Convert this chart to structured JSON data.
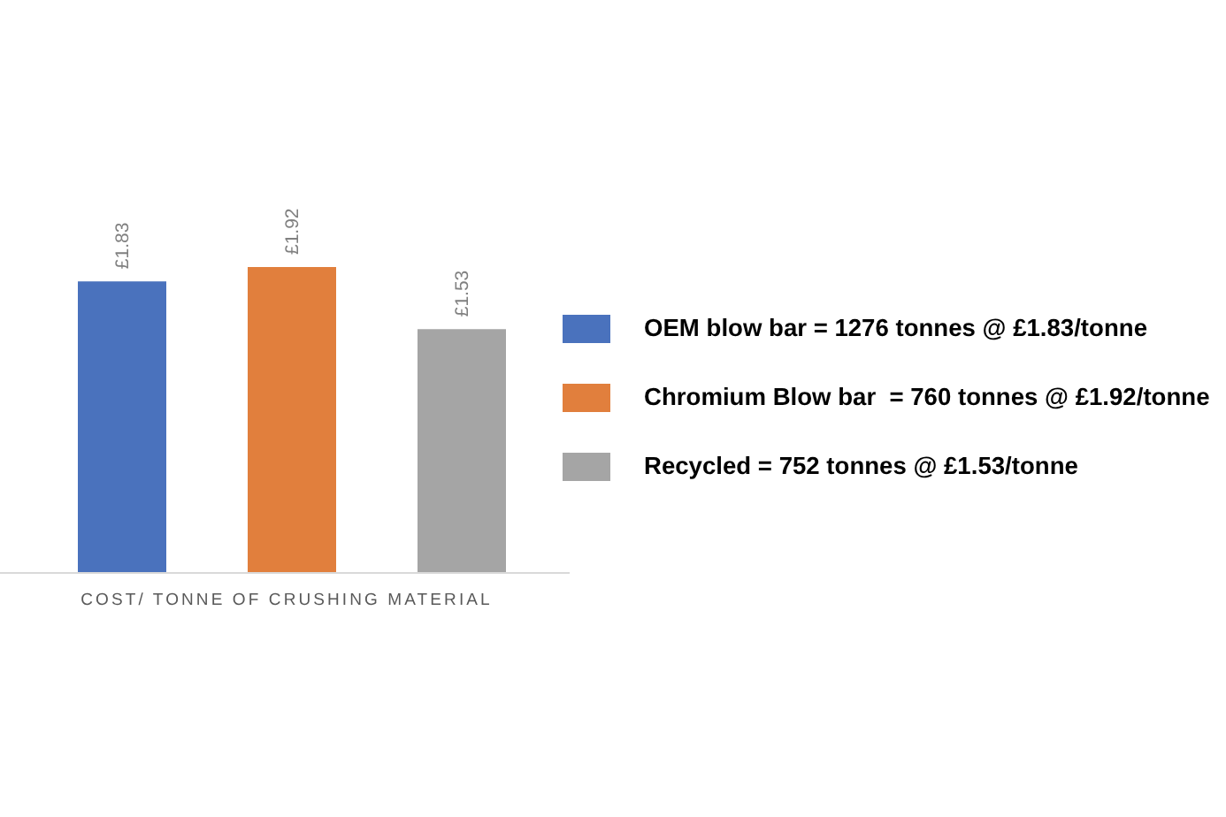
{
  "chart_data": {
    "type": "bar",
    "categories": [
      null,
      null,
      null
    ],
    "xlabel": "COST/ TONNE OF CRUSHING MATERIAL",
    "stacked": true,
    "series": [
      {
        "name": "OEM blow bar = 1276 tonnes @ £1.83/tonne",
        "color": "#4a72bd",
        "values": [
          1.83,
          null,
          null
        ],
        "value_labels": [
          "£1.83",
          null,
          null
        ]
      },
      {
        "name": "Chromium Blow bar  = 760 tonnes @ £1.92/tonne",
        "color": "#e17f3d",
        "values": [
          null,
          1.92,
          null
        ],
        "value_labels": [
          null,
          "£1.92",
          null
        ]
      },
      {
        "name": "Recycled = 752 tonnes @ £1.53/tonne",
        "color": "#a5a5a5",
        "values": [
          null,
          null,
          1.53
        ],
        "value_labels": [
          null,
          null,
          "£1.53"
        ]
      }
    ],
    "legend": "right"
  }
}
